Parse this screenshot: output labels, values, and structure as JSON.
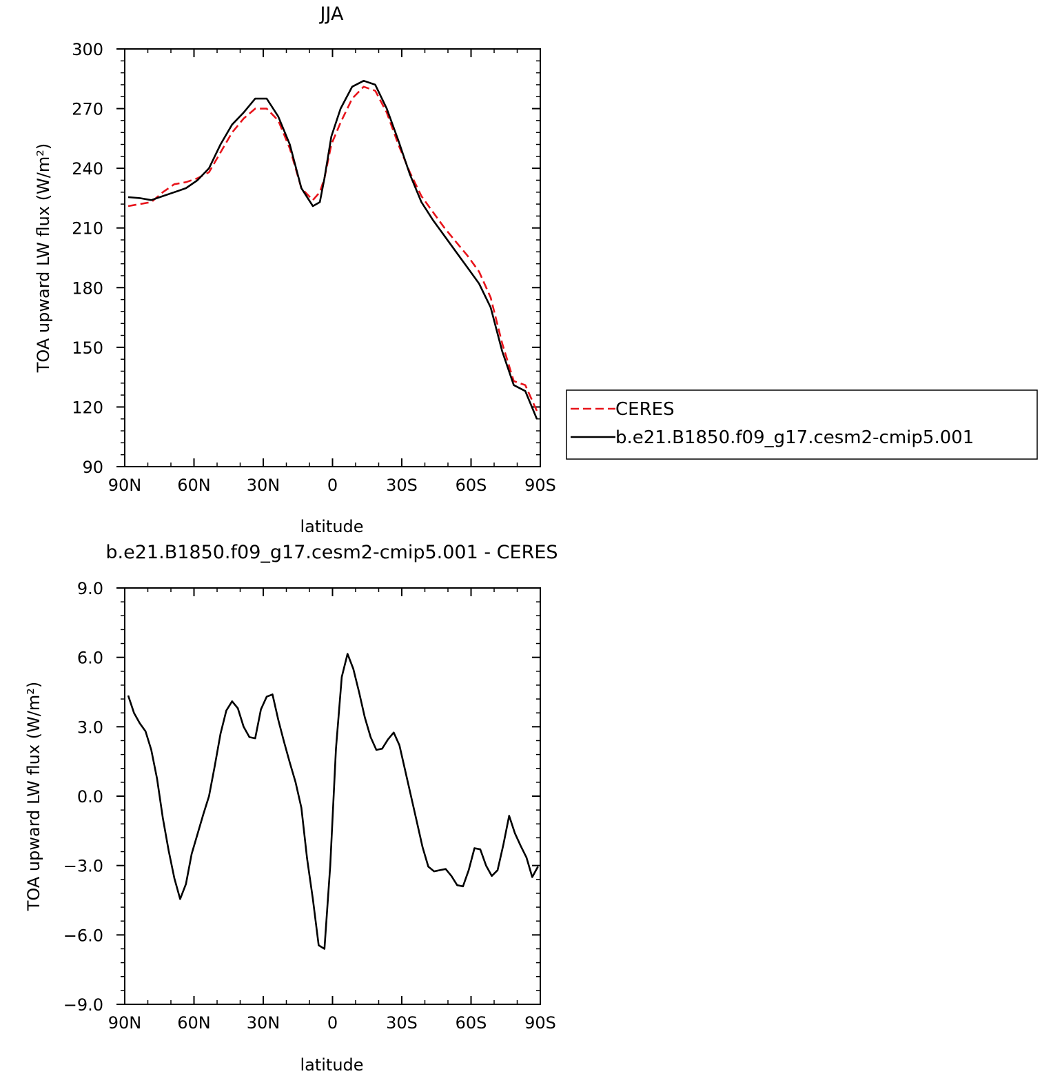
{
  "chart_data": [
    {
      "type": "line",
      "title": "JJA",
      "xlabel": "latitude",
      "ylabel": "TOA upward LW flux (W/m²)",
      "xlim": [
        90,
        -90
      ],
      "ylim": [
        90,
        300
      ],
      "xticks": [
        {
          "value": 90,
          "label": "90N"
        },
        {
          "value": 60,
          "label": "60N"
        },
        {
          "value": 30,
          "label": "30N"
        },
        {
          "value": 0,
          "label": "0"
        },
        {
          "value": -30,
          "label": "30S"
        },
        {
          "value": -60,
          "label": "60S"
        },
        {
          "value": -90,
          "label": "90S"
        }
      ],
      "yticks": [
        {
          "value": 300,
          "label": "300"
        },
        {
          "value": 270,
          "label": "270"
        },
        {
          "value": 240,
          "label": "240"
        },
        {
          "value": 210,
          "label": "210"
        },
        {
          "value": 180,
          "label": "180"
        },
        {
          "value": 150,
          "label": "150"
        },
        {
          "value": 120,
          "label": "120"
        },
        {
          "value": 90,
          "label": "90"
        }
      ],
      "grid": false,
      "legend": "right",
      "series": [
        {
          "name": "CERES",
          "color": "#e8141b",
          "dash": "dashed",
          "x": [
            88.5,
            83.5,
            78.5,
            73.5,
            68.5,
            63.5,
            58.5,
            53.5,
            48.5,
            43.5,
            38.5,
            33.5,
            28.5,
            23.5,
            18.5,
            13.5,
            8.5,
            5.5,
            3.5,
            0.5,
            -3.5,
            -8.5,
            -13.5,
            -18.5,
            -23.5,
            -28.5,
            -33.5,
            -38.5,
            -43.5,
            -48.5,
            -53.5,
            -58.5,
            -63.5,
            -68.5,
            -73.5,
            -78.5,
            -83.5,
            -88.5
          ],
          "y": [
            221,
            222,
            223,
            228,
            232,
            233,
            235,
            238,
            248,
            258,
            265,
            270,
            270,
            264,
            250,
            230,
            224,
            228,
            235,
            252,
            263,
            275,
            281,
            279,
            268,
            252,
            238,
            226,
            218,
            210,
            203,
            196,
            188,
            175,
            152,
            133,
            131,
            118
          ]
        },
        {
          "name": "b.e21.B1850.f09_g17.cesm2-cmip5.001",
          "color": "#000000",
          "dash": "solid",
          "x": [
            88.5,
            83.5,
            78.5,
            73.5,
            68.5,
            63.5,
            58.5,
            53.5,
            48.5,
            43.5,
            38.5,
            33.5,
            28.5,
            23.5,
            18.5,
            13.5,
            8.5,
            5.5,
            3.5,
            0.5,
            -3.5,
            -8.5,
            -13.5,
            -18.5,
            -23.5,
            -28.5,
            -33.5,
            -38.5,
            -43.5,
            -48.5,
            -53.5,
            -58.5,
            -63.5,
            -68.5,
            -73.5,
            -78.5,
            -83.5,
            -88.5
          ],
          "y": [
            225.5,
            225,
            224,
            226,
            228,
            230,
            234,
            240,
            252,
            262,
            268,
            275,
            275,
            266,
            252,
            230,
            221,
            223,
            235,
            256,
            270,
            281,
            284,
            282,
            270,
            254,
            237,
            223,
            214,
            206,
            198,
            190,
            182,
            170,
            148,
            131,
            128,
            114
          ]
        }
      ]
    },
    {
      "type": "line",
      "title": "b.e21.B1850.f09_g17.cesm2-cmip5.001 - CERES",
      "xlabel": "latitude",
      "ylabel": "TOA upward LW flux (W/m²)",
      "xlim": [
        90,
        -90
      ],
      "ylim": [
        -9.0,
        9.0
      ],
      "xticks": [
        {
          "value": 90,
          "label": "90N"
        },
        {
          "value": 60,
          "label": "60N"
        },
        {
          "value": 30,
          "label": "30N"
        },
        {
          "value": 0,
          "label": "0"
        },
        {
          "value": -30,
          "label": "30S"
        },
        {
          "value": -60,
          "label": "60S"
        },
        {
          "value": -90,
          "label": "90S"
        }
      ],
      "yticks": [
        {
          "value": 9.0,
          "label": "9.0"
        },
        {
          "value": 6.0,
          "label": "6.0"
        },
        {
          "value": 3.0,
          "label": "3.0"
        },
        {
          "value": 0.0,
          "label": "0.0"
        },
        {
          "value": -3.0,
          "label": "−3.0"
        },
        {
          "value": -6.0,
          "label": "−6.0"
        },
        {
          "value": -9.0,
          "label": "−9.0"
        }
      ],
      "grid": false,
      "series": [
        {
          "color": "#000000",
          "dash": "solid",
          "x": [
            88.5,
            86,
            83.5,
            81,
            78.5,
            76,
            73.5,
            71,
            68.5,
            66,
            63.5,
            61,
            58.5,
            56,
            53.5,
            51,
            48.5,
            46,
            43.5,
            41,
            38.5,
            36,
            33.5,
            31,
            28.5,
            26,
            23.5,
            21,
            18.5,
            16,
            13.5,
            11,
            8.5,
            6,
            3.5,
            1,
            -1.5,
            -4,
            -6.5,
            -9,
            -11.5,
            -14,
            -16.5,
            -19,
            -21.5,
            -24,
            -26.5,
            -29,
            -31.5,
            -34,
            -36.5,
            -39,
            -41.5,
            -44,
            -46.5,
            -49,
            -51.5,
            -54,
            -56.5,
            -59,
            -61.5,
            -64,
            -66.5,
            -69,
            -71.5,
            -74,
            -76.5,
            -79,
            -81.5,
            -84,
            -86.5,
            -89
          ],
          "y": [
            4.35,
            3.6,
            3.15,
            2.8,
            2.0,
            0.75,
            -0.95,
            -2.35,
            -3.55,
            -4.45,
            -3.8,
            -2.5,
            -1.65,
            -0.8,
            0.0,
            1.3,
            2.7,
            3.7,
            4.1,
            3.8,
            3.0,
            2.55,
            2.5,
            3.75,
            4.3,
            4.4,
            3.3,
            2.35,
            1.45,
            0.6,
            -0.5,
            -2.7,
            -4.45,
            -6.45,
            -6.6,
            -3.0,
            2.05,
            5.15,
            6.15,
            5.5,
            4.5,
            3.4,
            2.55,
            2.0,
            2.05,
            2.45,
            2.75,
            2.2,
            1.1,
            0.0,
            -1.1,
            -2.2,
            -3.05,
            -3.25,
            -3.2,
            -3.15,
            -3.45,
            -3.85,
            -3.9,
            -3.2,
            -2.25,
            -2.3,
            -3.0,
            -3.45,
            -3.2,
            -2.1,
            -0.85,
            -1.6,
            -2.15,
            -2.65,
            -3.5,
            -3.05
          ]
        }
      ]
    }
  ]
}
